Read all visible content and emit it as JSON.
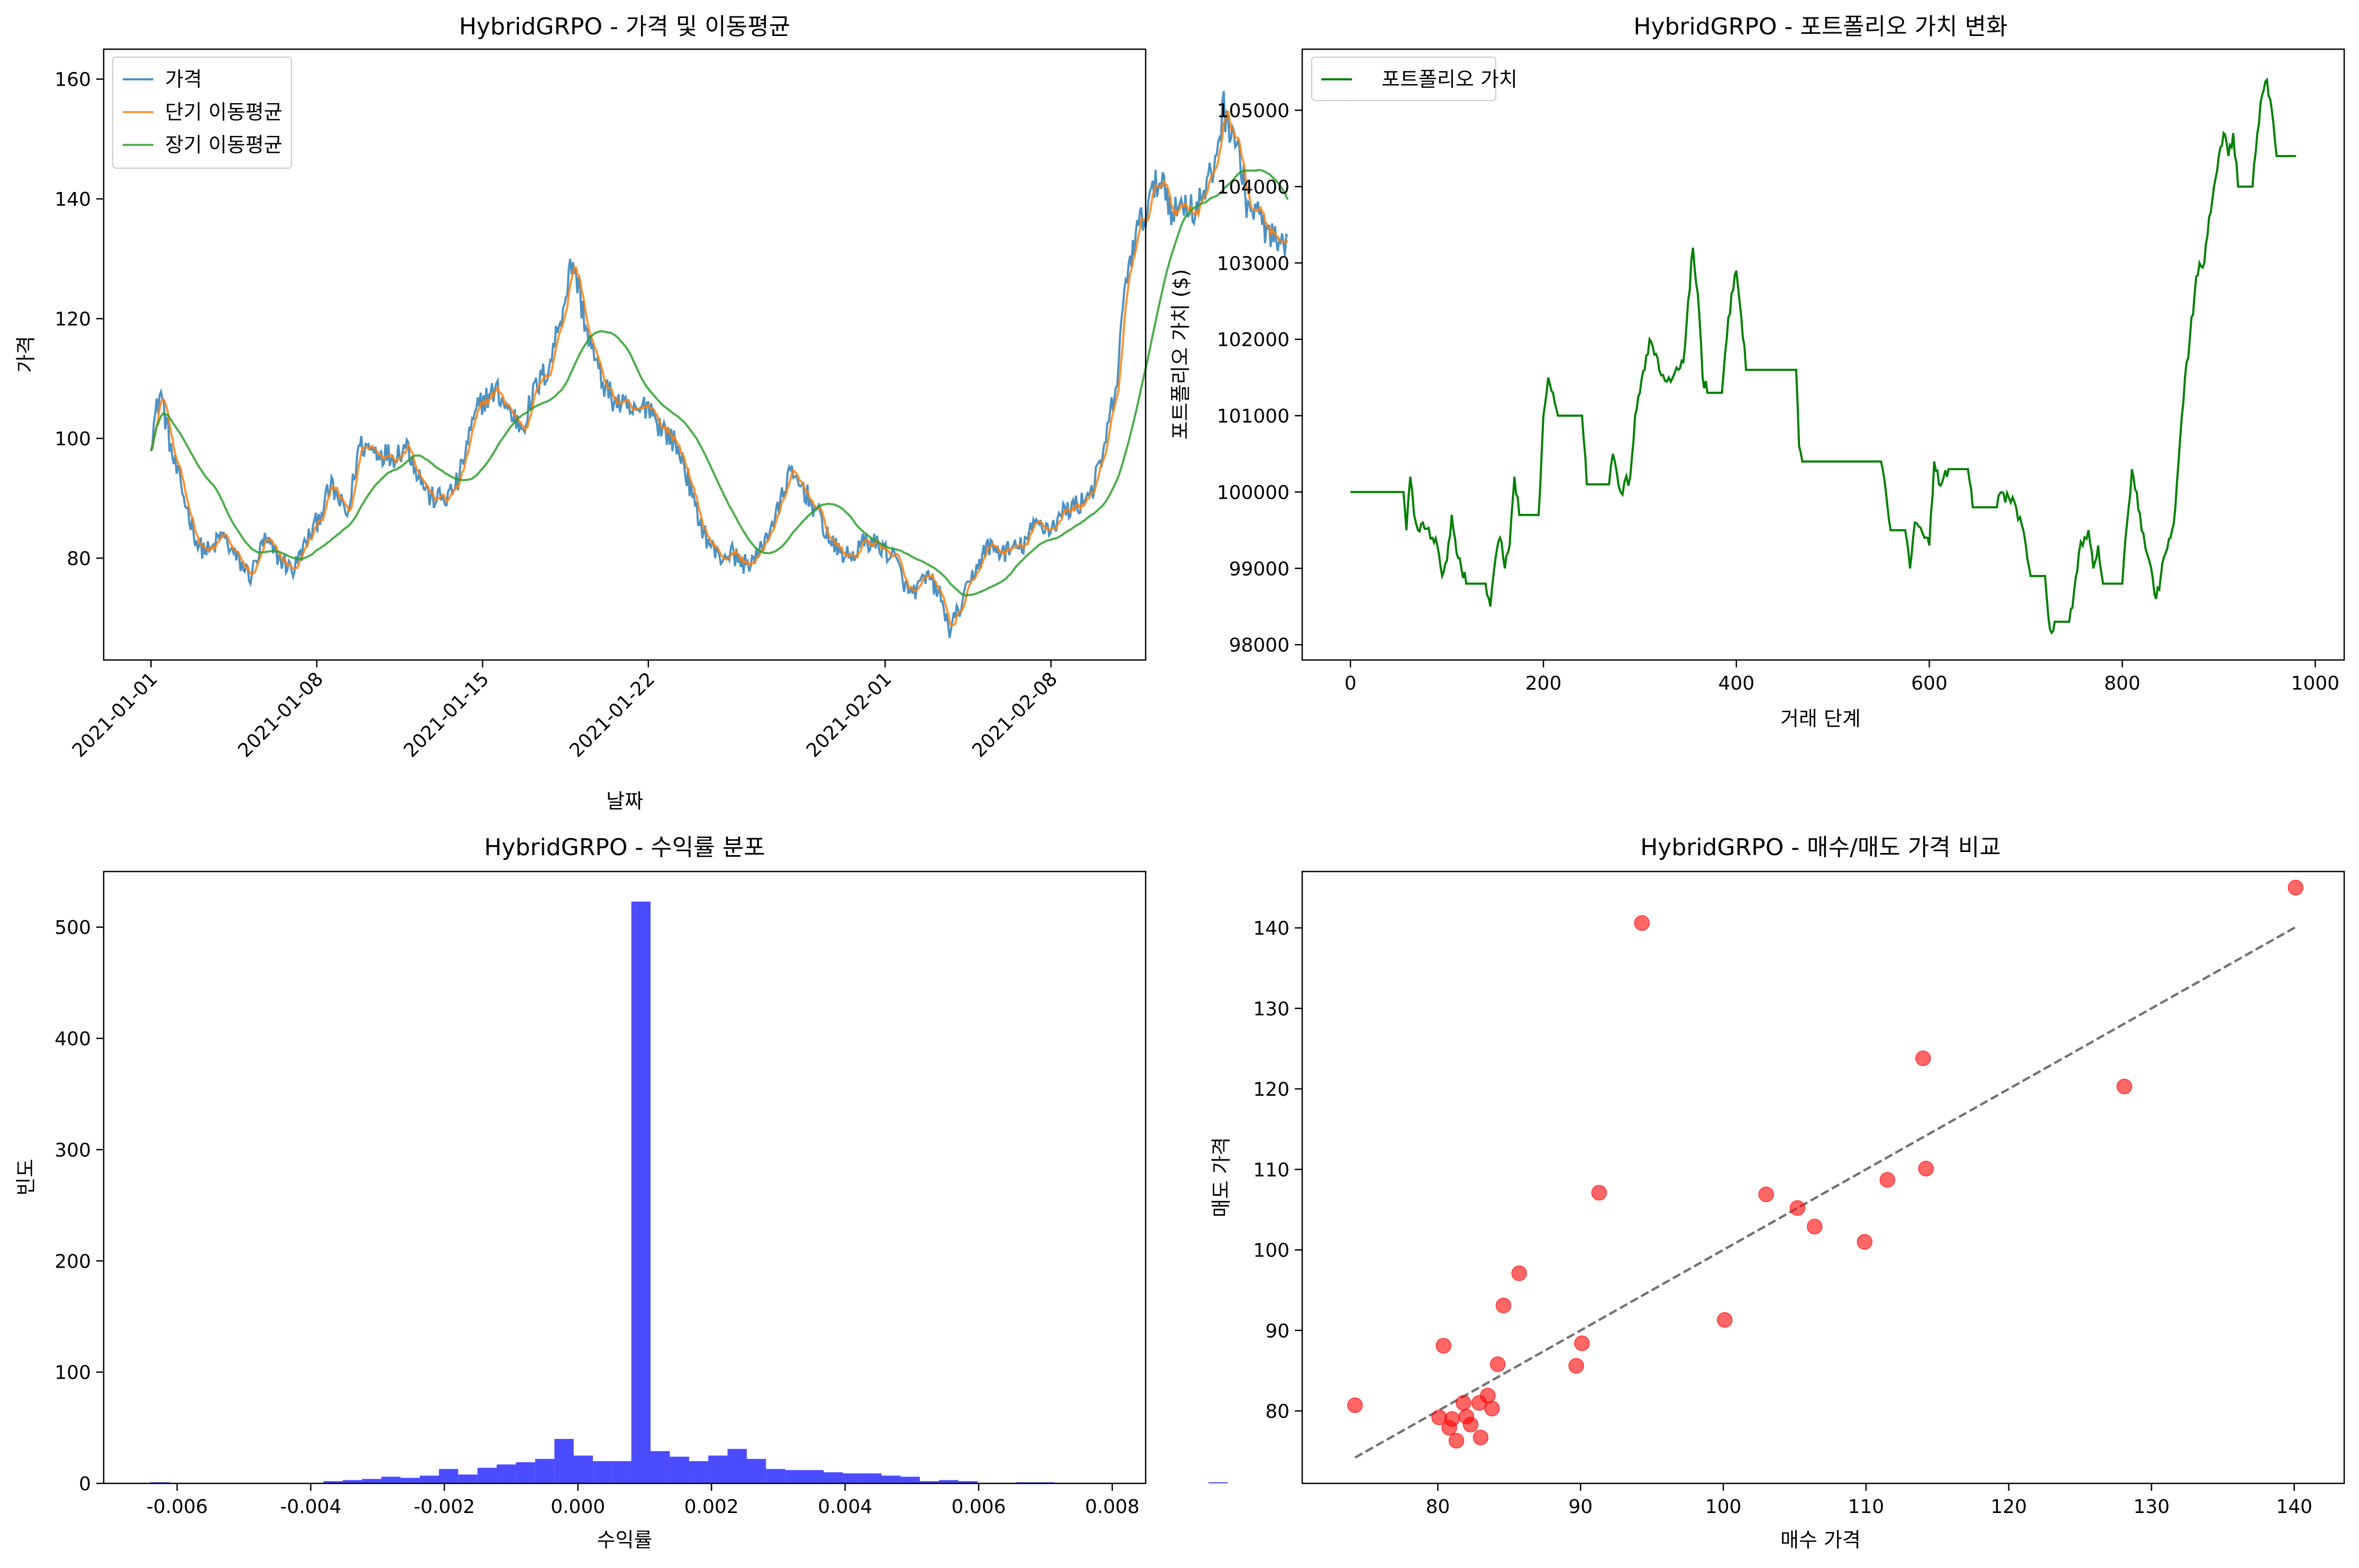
{
  "chart_data": [
    {
      "type": "line",
      "title": "HybridGRPO - 가격 및 이동평균",
      "xlabel": "날짜",
      "ylabel": "가격",
      "x_start": "2021-01-01",
      "x_end": "2021-02-11",
      "xlim": [
        "2020-12-30",
        "2021-02-12"
      ],
      "ylim": [
        63,
        165
      ],
      "x_ticks": [
        "2021-01-01",
        "2021-01-08",
        "2021-01-15",
        "2021-01-22",
        "2021-02-01",
        "2021-02-08"
      ],
      "y_ticks": [
        80,
        100,
        120,
        140,
        160
      ],
      "legend_position": "top-left",
      "series": [
        {
          "name": "가격",
          "color": "#1f77b4",
          "keypoints": [
            [
              0,
              100
            ],
            [
              0.4,
              108
            ],
            [
              0.9,
              97
            ],
            [
              1.4,
              90
            ],
            [
              2.0,
              82
            ],
            [
              2.5,
              81
            ],
            [
              3.0,
              84
            ],
            [
              3.6,
              80
            ],
            [
              4.2,
              77
            ],
            [
              4.8,
              83
            ],
            [
              5.4,
              80
            ],
            [
              6.0,
              78
            ],
            [
              6.6,
              83
            ],
            [
              7.0,
              86
            ],
            [
              7.6,
              92
            ],
            [
              8.3,
              87
            ],
            [
              8.8,
              99
            ],
            [
              9.5,
              98
            ],
            [
              10.2,
              97
            ],
            [
              10.8,
              99
            ],
            [
              11.3,
              94
            ],
            [
              11.8,
              90
            ],
            [
              12.5,
              90
            ],
            [
              13.0,
              93
            ],
            [
              13.4,
              100
            ],
            [
              13.9,
              106
            ],
            [
              14.6,
              108
            ],
            [
              15.2,
              104
            ],
            [
              15.7,
              102
            ],
            [
              16.2,
              108
            ],
            [
              16.8,
              112
            ],
            [
              17.4,
              122
            ],
            [
              17.8,
              130
            ],
            [
              18.4,
              118
            ],
            [
              18.9,
              111
            ],
            [
              19.4,
              107
            ],
            [
              20.0,
              105
            ],
            [
              20.5,
              104
            ],
            [
              21.0,
              106
            ],
            [
              21.5,
              102
            ],
            [
              22.0,
              100
            ],
            [
              22.5,
              96
            ],
            [
              23.0,
              88
            ],
            [
              23.5,
              83
            ],
            [
              24.0,
              80
            ],
            [
              24.5,
              81
            ],
            [
              25.0,
              79
            ],
            [
              25.6,
              80
            ],
            [
              26.0,
              84
            ],
            [
              26.5,
              88
            ],
            [
              26.9,
              94
            ],
            [
              27.5,
              92
            ],
            [
              28.2,
              87
            ],
            [
              28.8,
              82
            ],
            [
              29.5,
              80
            ],
            [
              30.2,
              83
            ],
            [
              30.8,
              82
            ],
            [
              31.4,
              80
            ],
            [
              32.0,
              74
            ],
            [
              32.4,
              75
            ],
            [
              32.8,
              77
            ],
            [
              33.3,
              74
            ],
            [
              33.7,
              68
            ],
            [
              34.2,
              72
            ],
            [
              34.8,
              78
            ],
            [
              35.3,
              82
            ],
            [
              36.0,
              81
            ],
            [
              36.8,
              82
            ],
            [
              37.4,
              86
            ],
            [
              38.0,
              85
            ],
            [
              38.6,
              88
            ],
            [
              39.2,
              89
            ],
            [
              39.8,
              92
            ],
            [
              40.2,
              97
            ],
            [
              40.8,
              110
            ],
            [
              41.2,
              128
            ],
            [
              41.7,
              135
            ],
            [
              42.2,
              140
            ],
            [
              42.7,
              144
            ],
            [
              43.2,
              137
            ],
            [
              43.6,
              140
            ],
            [
              44.0,
              138
            ],
            [
              44.4,
              140
            ],
            [
              44.8,
              144
            ],
            [
              45.3,
              155
            ],
            [
              45.8,
              150
            ],
            [
              46.3,
              139
            ],
            [
              46.8,
              137
            ],
            [
              47.2,
              134
            ],
            [
              47.6,
              132
            ],
            [
              48.0,
              131
            ]
          ]
        },
        {
          "name": "단기 이동평균",
          "color": "#ff7f0e",
          "smoothing": 3
        },
        {
          "name": "장기 이동평균",
          "color": "#2ca02c",
          "smoothing": 12
        }
      ]
    },
    {
      "type": "line",
      "title": "HybridGRPO - 포트폴리오 가치 변화",
      "xlabel": "거래 단계",
      "ylabel": "포트폴리오 가치 ($)",
      "xlim": [
        -50,
        1030
      ],
      "ylim": [
        97800,
        105800
      ],
      "x_ticks": [
        0,
        200,
        400,
        600,
        800,
        1000
      ],
      "y_ticks": [
        98000,
        99000,
        100000,
        101000,
        102000,
        103000,
        104000,
        105000
      ],
      "legend_position": "top-left",
      "series": [
        {
          "name": "포트폴리오 가치",
          "color": "#008000",
          "points": [
            [
              0,
              100000
            ],
            [
              55,
              100000
            ],
            [
              58,
              99500
            ],
            [
              62,
              100200
            ],
            [
              66,
              99700
            ],
            [
              70,
              99500
            ],
            [
              75,
              99600
            ],
            [
              85,
              99400
            ],
            [
              90,
              99300
            ],
            [
              95,
              98900
            ],
            [
              100,
              99100
            ],
            [
              105,
              99700
            ],
            [
              110,
              99200
            ],
            [
              115,
              99000
            ],
            [
              120,
              98800
            ],
            [
              140,
              98800
            ],
            [
              145,
              98500
            ],
            [
              150,
              99100
            ],
            [
              155,
              99400
            ],
            [
              160,
              99000
            ],
            [
              165,
              99300
            ],
            [
              170,
              100200
            ],
            [
              175,
              99700
            ],
            [
              195,
              99700
            ],
            [
              200,
              101000
            ],
            [
              205,
              101500
            ],
            [
              210,
              101300
            ],
            [
              215,
              101000
            ],
            [
              240,
              101000
            ],
            [
              245,
              100100
            ],
            [
              268,
              100100
            ],
            [
              272,
              100500
            ],
            [
              280,
              100000
            ],
            [
              290,
              100200
            ],
            [
              295,
              101000
            ],
            [
              300,
              101300
            ],
            [
              305,
              101600
            ],
            [
              310,
              102000
            ],
            [
              315,
              101800
            ],
            [
              320,
              101600
            ],
            [
              330,
              101500
            ],
            [
              340,
              101600
            ],
            [
              345,
              101700
            ],
            [
              350,
              102500
            ],
            [
              355,
              103200
            ],
            [
              360,
              102600
            ],
            [
              365,
              101500
            ],
            [
              370,
              101300
            ],
            [
              385,
              101300
            ],
            [
              390,
              102000
            ],
            [
              395,
              102600
            ],
            [
              400,
              102900
            ],
            [
              405,
              102300
            ],
            [
              410,
              101600
            ],
            [
              462,
              101600
            ],
            [
              465,
              100600
            ],
            [
              470,
              100400
            ],
            [
              550,
              100400
            ],
            [
              555,
              100000
            ],
            [
              560,
              99500
            ],
            [
              575,
              99500
            ],
            [
              580,
              99000
            ],
            [
              585,
              99600
            ],
            [
              595,
              99400
            ],
            [
              600,
              99300
            ],
            [
              605,
              100400
            ],
            [
              610,
              100100
            ],
            [
              615,
              100200
            ],
            [
              620,
              100300
            ],
            [
              640,
              100300
            ],
            [
              645,
              99800
            ],
            [
              670,
              99800
            ],
            [
              675,
              100000
            ],
            [
              690,
              99800
            ],
            [
              700,
              99300
            ],
            [
              705,
              98900
            ],
            [
              720,
              98900
            ],
            [
              725,
              98200
            ],
            [
              730,
              98300
            ],
            [
              745,
              98300
            ],
            [
              750,
              98700
            ],
            [
              755,
              99200
            ],
            [
              765,
              99500
            ],
            [
              770,
              99000
            ],
            [
              775,
              99300
            ],
            [
              780,
              98800
            ],
            [
              800,
              98800
            ],
            [
              805,
              99600
            ],
            [
              810,
              100300
            ],
            [
              815,
              100000
            ],
            [
              820,
              99500
            ],
            [
              830,
              99000
            ],
            [
              835,
              98600
            ],
            [
              840,
              98900
            ],
            [
              845,
              99200
            ],
            [
              850,
              99400
            ],
            [
              855,
              99800
            ],
            [
              860,
              100700
            ],
            [
              865,
              101500
            ],
            [
              870,
              102000
            ],
            [
              875,
              102600
            ],
            [
              880,
              103000
            ],
            [
              885,
              103000
            ],
            [
              890,
              103600
            ],
            [
              895,
              104000
            ],
            [
              900,
              104400
            ],
            [
              905,
              104700
            ],
            [
              910,
              104400
            ],
            [
              915,
              104700
            ],
            [
              920,
              104000
            ],
            [
              935,
              104000
            ],
            [
              940,
              104700
            ],
            [
              945,
              105200
            ],
            [
              950,
              105400
            ],
            [
              955,
              105000
            ],
            [
              960,
              104400
            ],
            [
              980,
              104400
            ]
          ]
        }
      ]
    },
    {
      "type": "bar",
      "title": "HybridGRPO - 수익률 분포",
      "xlabel": "수익률",
      "ylabel": "빈도",
      "xlim": [
        -0.0071,
        0.0085
      ],
      "ylim": [
        0,
        550
      ],
      "x_ticks": [
        "-0.006",
        "-0.004",
        "-0.002",
        "0.000",
        "0.002",
        "0.004",
        "0.006",
        "0.008"
      ],
      "x_tick_values": [
        -0.006,
        -0.004,
        -0.002,
        0.0,
        0.002,
        0.004,
        0.006,
        0.008
      ],
      "y_ticks": [
        0,
        100,
        200,
        300,
        400,
        500
      ],
      "color": "#0000ff",
      "bin_start": -0.0064,
      "bin_width": 0.000288,
      "counts": [
        1,
        0,
        0,
        0,
        0,
        0,
        0,
        0,
        0,
        2,
        3,
        4,
        6,
        5,
        7,
        13,
        8,
        14,
        17,
        19,
        22,
        40,
        25,
        20,
        20,
        523,
        29,
        24,
        20,
        25,
        31,
        22,
        13,
        12,
        12,
        10,
        9,
        9,
        7,
        6,
        2,
        3,
        2,
        0,
        0,
        1,
        1,
        0,
        0,
        0,
        0,
        0,
        0,
        0,
        0,
        1
      ]
    },
    {
      "type": "scatter",
      "title": "HybridGRPO - 매수/매도 가격 비교",
      "xlabel": "매수 가격",
      "ylabel": "매도 가격",
      "xlim": [
        70.5,
        143.5
      ],
      "ylim": [
        71,
        147
      ],
      "x_ticks": [
        80,
        90,
        100,
        110,
        120,
        130,
        140
      ],
      "y_ticks": [
        80,
        90,
        100,
        110,
        120,
        130,
        140
      ],
      "point_color": "#ff0000",
      "reference_line": {
        "from": [
          74.2,
          74.2
        ],
        "to": [
          140.1,
          140.1
        ],
        "style": "dashed",
        "color": "#000000"
      },
      "points": [
        [
          74.2,
          80.7
        ],
        [
          80.1,
          79.2
        ],
        [
          80.4,
          88.1
        ],
        [
          80.8,
          77.9
        ],
        [
          81.0,
          79.0
        ],
        [
          81.3,
          76.3
        ],
        [
          81.8,
          81.0
        ],
        [
          82.0,
          79.3
        ],
        [
          82.3,
          78.3
        ],
        [
          82.9,
          81.0
        ],
        [
          83.0,
          76.7
        ],
        [
          83.5,
          81.9
        ],
        [
          83.8,
          80.3
        ],
        [
          84.2,
          85.8
        ],
        [
          84.6,
          93.1
        ],
        [
          85.7,
          97.1
        ],
        [
          89.7,
          85.6
        ],
        [
          90.1,
          88.4
        ],
        [
          91.3,
          107.1
        ],
        [
          94.3,
          140.6
        ],
        [
          100.1,
          91.3
        ],
        [
          103.0,
          106.9
        ],
        [
          105.2,
          105.2
        ],
        [
          106.4,
          102.9
        ],
        [
          109.9,
          101.0
        ],
        [
          111.5,
          108.7
        ],
        [
          114.0,
          123.8
        ],
        [
          114.2,
          110.1
        ],
        [
          128.1,
          120.3
        ],
        [
          140.1,
          145.0
        ]
      ]
    }
  ]
}
